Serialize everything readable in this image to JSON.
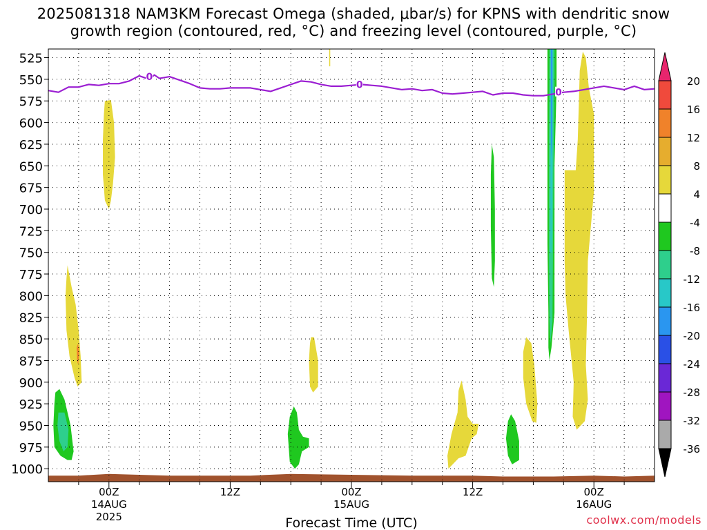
{
  "header": {
    "title_line1": "2025081318 NAM3KM Forecast Omega (shaded, μbar/s) for KPNS with dendritic snow",
    "title_line2": "growth region (contoured, red, °C) and freezing level (contoured, purple, °C)"
  },
  "footer": {
    "credit": "coolwx.com/models"
  },
  "chart_data": {
    "type": "heatmap",
    "xlabel": "Forecast Time (UTC)",
    "x_ticks": [
      {
        "hour": 6,
        "label": "00Z",
        "sub1": "14AUG",
        "sub2": "2025"
      },
      {
        "hour": 18,
        "label": "12Z",
        "sub1": "",
        "sub2": ""
      },
      {
        "hour": 30,
        "label": "00Z",
        "sub1": "15AUG",
        "sub2": ""
      },
      {
        "hour": 42,
        "label": "12Z",
        "sub1": "",
        "sub2": ""
      },
      {
        "hour": 54,
        "label": "00Z",
        "sub1": "16AUG",
        "sub2": ""
      }
    ],
    "xlim_hours": [
      0,
      60
    ],
    "y_levels_mb": [
      525,
      550,
      575,
      600,
      625,
      650,
      675,
      700,
      725,
      750,
      775,
      800,
      825,
      850,
      875,
      900,
      925,
      950,
      975,
      1000
    ],
    "ylim_mb": [
      515,
      1015
    ],
    "grid": true,
    "colorbar": {
      "labels": [
        "20",
        "16",
        "12",
        "8",
        "4",
        "-4",
        "-8",
        "-12",
        "-16",
        "-20",
        "-24",
        "-28",
        "-32",
        "-36"
      ],
      "colors": [
        "#e8256d",
        "#f04a3c",
        "#f0822a",
        "#e6ad2e",
        "#e6d83a",
        "#ffffff",
        "#1fc81f",
        "#2ecf8c",
        "#28c8c8",
        "#2a96f0",
        "#2a50e6",
        "#6a28d6",
        "#a015c0",
        "#aaaaaa",
        "#000000"
      ]
    },
    "freezing_level": {
      "label": "0",
      "color": "#9b1ed2",
      "points": [
        [
          0,
          563
        ],
        [
          1,
          565
        ],
        [
          2,
          559
        ],
        [
          3,
          559
        ],
        [
          4,
          556
        ],
        [
          5,
          557
        ],
        [
          6,
          555
        ],
        [
          7,
          555
        ],
        [
          8,
          552
        ],
        [
          9,
          546
        ],
        [
          10,
          550
        ],
        [
          10.5,
          545
        ],
        [
          11,
          549
        ],
        [
          12,
          547
        ],
        [
          13,
          551
        ],
        [
          14,
          555
        ],
        [
          15,
          560
        ],
        [
          16,
          561
        ],
        [
          17,
          561
        ],
        [
          18,
          560
        ],
        [
          19,
          560
        ],
        [
          20,
          560
        ],
        [
          21,
          562
        ],
        [
          22,
          564
        ],
        [
          23,
          560
        ],
        [
          24,
          556
        ],
        [
          25,
          552
        ],
        [
          26,
          553
        ],
        [
          27,
          556
        ],
        [
          28,
          558
        ],
        [
          29,
          558
        ],
        [
          30,
          557
        ],
        [
          31,
          556
        ],
        [
          32,
          557
        ],
        [
          33,
          558
        ],
        [
          34,
          560
        ],
        [
          35,
          562
        ],
        [
          36,
          561
        ],
        [
          37,
          563
        ],
        [
          38,
          562
        ],
        [
          39,
          566
        ],
        [
          40,
          567
        ],
        [
          41,
          566
        ],
        [
          42,
          565
        ],
        [
          43,
          564
        ],
        [
          44,
          568
        ],
        [
          45,
          566
        ],
        [
          46,
          566
        ],
        [
          47,
          568
        ],
        [
          48,
          569
        ],
        [
          49,
          569
        ],
        [
          50,
          567
        ],
        [
          51,
          565
        ],
        [
          52,
          564
        ],
        [
          53,
          562
        ],
        [
          54,
          560
        ],
        [
          55,
          558
        ],
        [
          56,
          560
        ],
        [
          57,
          562
        ],
        [
          58,
          558
        ],
        [
          59,
          562
        ],
        [
          60,
          561
        ]
      ],
      "label_hours": [
        10,
        30.8,
        50.5
      ],
      "label_values_mb": [
        547,
        556,
        565
      ]
    },
    "surface": {
      "color": "#a0522d",
      "points": [
        [
          0,
          1008
        ],
        [
          3,
          1008
        ],
        [
          6,
          1006
        ],
        [
          12,
          1008
        ],
        [
          20,
          1008
        ],
        [
          24,
          1006
        ],
        [
          30,
          1007
        ],
        [
          36,
          1008
        ],
        [
          42,
          1008
        ],
        [
          45,
          1009
        ],
        [
          50,
          1009
        ],
        [
          54,
          1008
        ],
        [
          57,
          1009
        ],
        [
          60,
          1008
        ]
      ]
    },
    "shaded_regions": [
      {
        "color": "#e6d83a",
        "points": [
          [
            5.6,
            575
          ],
          [
            6.2,
            574
          ],
          [
            6.5,
            600
          ],
          [
            6.6,
            640
          ],
          [
            6.4,
            670
          ],
          [
            6.2,
            690
          ],
          [
            6,
            700
          ],
          [
            5.6,
            690
          ],
          [
            5.4,
            660
          ],
          [
            5.4,
            620
          ],
          [
            5.5,
            590
          ]
        ]
      },
      {
        "color": "#e6d83a",
        "points": [
          [
            1.9,
            765
          ],
          [
            2.3,
            790
          ],
          [
            2.7,
            810
          ],
          [
            3,
            840
          ],
          [
            3.2,
            870
          ],
          [
            3.3,
            900
          ],
          [
            2.9,
            905
          ],
          [
            2.6,
            895
          ],
          [
            2.1,
            870
          ],
          [
            1.8,
            840
          ],
          [
            1.7,
            800
          ],
          [
            1.8,
            780
          ]
        ]
      },
      {
        "color": "#f0822a",
        "points": [
          [
            2.8,
            860
          ],
          [
            2.95,
            855
          ],
          [
            3.05,
            868
          ],
          [
            2.95,
            880
          ],
          [
            2.85,
            875
          ]
        ]
      },
      {
        "color": "#1fc81f",
        "points": [
          [
            0.7,
            912
          ],
          [
            1.1,
            908
          ],
          [
            1.6,
            920
          ],
          [
            2.2,
            950
          ],
          [
            2.5,
            980
          ],
          [
            2.3,
            990
          ],
          [
            1.9,
            990
          ],
          [
            1.2,
            985
          ],
          [
            0.6,
            975
          ],
          [
            0.5,
            950
          ],
          [
            0.6,
            925
          ]
        ]
      },
      {
        "color": "#2ecf8c",
        "points": [
          [
            1,
            935
          ],
          [
            1.6,
            935
          ],
          [
            2,
            955
          ],
          [
            1.9,
            975
          ],
          [
            1.5,
            980
          ],
          [
            1.1,
            968
          ],
          [
            0.9,
            950
          ]
        ]
      },
      {
        "color": "#e6d83a",
        "points": [
          [
            26,
            848
          ],
          [
            26.3,
            848
          ],
          [
            26.7,
            875
          ],
          [
            26.7,
            905
          ],
          [
            26.2,
            912
          ],
          [
            25.9,
            905
          ],
          [
            25.8,
            875
          ],
          [
            25.9,
            855
          ]
        ]
      },
      {
        "color": "#e6d83a",
        "points": [
          [
            27.8,
            515
          ],
          [
            27.9,
            515
          ],
          [
            27.9,
            535
          ],
          [
            27.8,
            535
          ]
        ]
      },
      {
        "color": "#1fc81f",
        "points": [
          [
            24.3,
            928
          ],
          [
            24.6,
            935
          ],
          [
            24.8,
            955
          ],
          [
            25.2,
            963
          ],
          [
            25.8,
            965
          ],
          [
            25.8,
            975
          ],
          [
            25.1,
            980
          ],
          [
            24.8,
            995
          ],
          [
            24.4,
            1000
          ],
          [
            23.9,
            992
          ],
          [
            23.7,
            960
          ],
          [
            23.9,
            940
          ]
        ]
      },
      {
        "color": "#e6d83a",
        "points": [
          [
            40.9,
            898
          ],
          [
            41.3,
            920
          ],
          [
            41.5,
            940
          ],
          [
            42,
            948
          ],
          [
            42.6,
            948
          ],
          [
            42.4,
            960
          ],
          [
            41.9,
            965
          ],
          [
            41.3,
            985
          ],
          [
            40.6,
            988
          ],
          [
            39.6,
            1000
          ],
          [
            39.5,
            985
          ],
          [
            39.9,
            960
          ],
          [
            40.5,
            935
          ],
          [
            40.6,
            910
          ]
        ]
      },
      {
        "color": "#1fc81f",
        "points": [
          [
            43.9,
            625
          ],
          [
            44.1,
            640
          ],
          [
            44.2,
            700
          ],
          [
            44.2,
            760
          ],
          [
            44.1,
            790
          ],
          [
            43.9,
            780
          ],
          [
            43.8,
            720
          ],
          [
            43.8,
            660
          ]
        ]
      },
      {
        "color": "#1fc81f",
        "points": [
          [
            45.8,
            937
          ],
          [
            46.2,
            945
          ],
          [
            46.6,
            968
          ],
          [
            46.6,
            990
          ],
          [
            45.9,
            995
          ],
          [
            45.5,
            985
          ],
          [
            45.3,
            965
          ],
          [
            45.5,
            945
          ]
        ]
      },
      {
        "color": "#e6d83a",
        "points": [
          [
            47.3,
            848
          ],
          [
            47.8,
            855
          ],
          [
            48.1,
            880
          ],
          [
            48.4,
            925
          ],
          [
            48.3,
            947
          ],
          [
            47.9,
            945
          ],
          [
            47.3,
            925
          ],
          [
            47,
            895
          ],
          [
            47,
            865
          ]
        ]
      },
      {
        "color": "#e6d83a",
        "points": [
          [
            52.9,
            518
          ],
          [
            53.2,
            525
          ],
          [
            53.5,
            560
          ],
          [
            54,
            590
          ],
          [
            54,
            680
          ],
          [
            53.4,
            760
          ],
          [
            53.3,
            830
          ],
          [
            53.2,
            880
          ],
          [
            53.4,
            920
          ],
          [
            53.1,
            945
          ],
          [
            52.3,
            955
          ],
          [
            51.9,
            940
          ],
          [
            52,
            900
          ],
          [
            51.5,
            840
          ],
          [
            51.2,
            800
          ],
          [
            51.1,
            760
          ],
          [
            51.1,
            655
          ],
          [
            52.2,
            655
          ],
          [
            52.4,
            620
          ],
          [
            52.5,
            580
          ],
          [
            52.6,
            540
          ]
        ]
      },
      {
        "color": "#1fc81f",
        "points": [
          [
            49.4,
            515
          ],
          [
            50.3,
            515
          ],
          [
            50.3,
            560
          ],
          [
            50.1,
            650
          ],
          [
            50.1,
            820
          ],
          [
            49.8,
            860
          ],
          [
            49.6,
            875
          ],
          [
            49.5,
            860
          ],
          [
            49.5,
            820
          ],
          [
            49.4,
            740
          ],
          [
            49.4,
            620
          ]
        ]
      },
      {
        "color": "#2ecf8c",
        "points": [
          [
            49.6,
            515
          ],
          [
            50.1,
            515
          ],
          [
            50.1,
            560
          ],
          [
            50,
            650
          ],
          [
            49.9,
            830
          ],
          [
            49.7,
            855
          ],
          [
            49.6,
            830
          ],
          [
            49.55,
            740
          ],
          [
            49.55,
            620
          ]
        ]
      },
      {
        "color": "#28c8c8",
        "points": [
          [
            49.7,
            515
          ],
          [
            49.95,
            515
          ],
          [
            49.95,
            560
          ],
          [
            49.9,
            650
          ],
          [
            49.85,
            700
          ],
          [
            49.8,
            750
          ],
          [
            49.7,
            750
          ],
          [
            49.7,
            690
          ],
          [
            49.7,
            620
          ]
        ]
      },
      {
        "color": "#2a96f0",
        "points": [
          [
            49.75,
            515
          ],
          [
            49.88,
            515
          ],
          [
            49.88,
            560
          ],
          [
            49.85,
            620
          ],
          [
            49.8,
            640
          ],
          [
            49.75,
            620
          ],
          [
            49.75,
            560
          ]
        ]
      }
    ]
  }
}
